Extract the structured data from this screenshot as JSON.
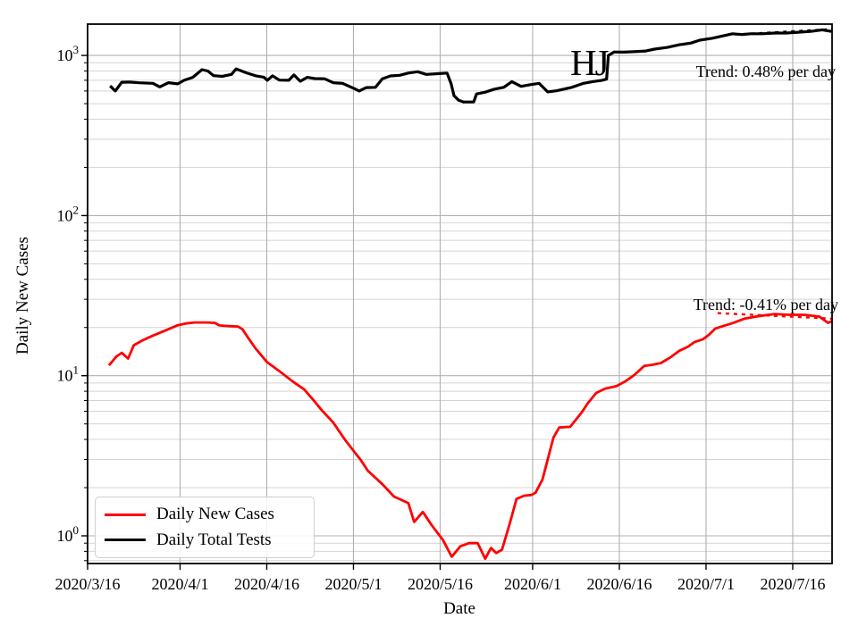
{
  "figure": {
    "ylabel": "Daily New Cases",
    "xlabel": "Date",
    "annotation_hj": "HJ",
    "trend_tests_label": "Trend: 0.48% per day",
    "trend_cases_label": "Trend: -0.41% per day",
    "background_color": "#ffffff",
    "spine_color": "#000000",
    "major_grid_color": "#b0b0b0",
    "minor_grid_color": "#d4d4d4"
  },
  "legend": {
    "items": [
      {
        "label": "Daily New Cases",
        "color": "#ff0000"
      },
      {
        "label": "Daily Total Tests",
        "color": "#000000"
      }
    ]
  },
  "chart_data": {
    "type": "line",
    "title": "",
    "xlabel": "Date",
    "ylabel": "Daily New Cases",
    "y_scale": "log",
    "ylim": [
      0.67,
      1570
    ],
    "x_unit": "days since 2020/3/16",
    "x_tick_days": [
      0,
      16,
      31,
      46,
      61,
      77,
      92,
      107,
      122
    ],
    "x_tick_labels": [
      "2020/3/16",
      "2020/4/1",
      "2020/4/16",
      "2020/5/1",
      "2020/5/16",
      "2020/6/1",
      "2020/6/16",
      "2020/7/1",
      "2020/7/16"
    ],
    "y_ticks": [
      {
        "value": 1,
        "base": "10",
        "exp": "0"
      },
      {
        "value": 10,
        "base": "10",
        "exp": "1"
      },
      {
        "value": 100,
        "base": "10",
        "exp": "2"
      },
      {
        "value": 1000,
        "base": "10",
        "exp": "3"
      }
    ],
    "grid": true,
    "legend_position": "lower left",
    "annotations": [
      {
        "text": "HJ",
        "day": 85,
        "value": 900
      },
      {
        "text": "Trend: 0.48% per day",
        "day": 129,
        "value": 740
      },
      {
        "text": "Trend: -0.41% per day",
        "day": 129,
        "value": 28
      }
    ],
    "series": [
      {
        "name": "Daily New Cases",
        "color": "#ff0000",
        "style": "solid",
        "width": 2.8,
        "points": [
          [
            3.7,
            11.6
          ],
          [
            5,
            13.2
          ],
          [
            5.9,
            13.9
          ],
          [
            7,
            12.8
          ],
          [
            8,
            15.5
          ],
          [
            9.5,
            16.6
          ],
          [
            11,
            17.6
          ],
          [
            13.5,
            19.2
          ],
          [
            15.5,
            20.6
          ],
          [
            17,
            21.2
          ],
          [
            18.5,
            21.5
          ],
          [
            20.5,
            21.5
          ],
          [
            22,
            21.4
          ],
          [
            22.8,
            20.6
          ],
          [
            24.5,
            20.4
          ],
          [
            26,
            20.3
          ],
          [
            26.8,
            19.5
          ],
          [
            27.8,
            17.2
          ],
          [
            29,
            14.9
          ],
          [
            31,
            12.2
          ],
          [
            33,
            10.8
          ],
          [
            35.5,
            9.2
          ],
          [
            37.5,
            8.2
          ],
          [
            39,
            7.1
          ],
          [
            40.5,
            6.1
          ],
          [
            42.5,
            5.1
          ],
          [
            44.5,
            4.0
          ],
          [
            46,
            3.4
          ],
          [
            47.2,
            3.0
          ],
          [
            48.5,
            2.55
          ],
          [
            51,
            2.1
          ],
          [
            53,
            1.76
          ],
          [
            55.5,
            1.6
          ],
          [
            56.5,
            1.22
          ],
          [
            58,
            1.41
          ],
          [
            59.5,
            1.17
          ],
          [
            61.5,
            0.94
          ],
          [
            63,
            0.74
          ],
          [
            64.5,
            0.86
          ],
          [
            66,
            0.9
          ],
          [
            67.5,
            0.9
          ],
          [
            68.8,
            0.72
          ],
          [
            69.8,
            0.84
          ],
          [
            70.7,
            0.78
          ],
          [
            71.7,
            0.82
          ],
          [
            73,
            1.18
          ],
          [
            74.2,
            1.7
          ],
          [
            75.5,
            1.78
          ],
          [
            76.8,
            1.8
          ],
          [
            77.5,
            1.86
          ],
          [
            78.7,
            2.25
          ],
          [
            79.6,
            3.0
          ],
          [
            80.6,
            4.1
          ],
          [
            81.6,
            4.75
          ],
          [
            83.5,
            4.8
          ],
          [
            85.5,
            5.9
          ],
          [
            86.5,
            6.7
          ],
          [
            88,
            7.8
          ],
          [
            89.5,
            8.3
          ],
          [
            91.5,
            8.6
          ],
          [
            93,
            9.2
          ],
          [
            94.6,
            10.1
          ],
          [
            95.7,
            11.0
          ],
          [
            96.3,
            11.5
          ],
          [
            97.7,
            11.7
          ],
          [
            99.2,
            12.0
          ],
          [
            100.8,
            13.0
          ],
          [
            102.4,
            14.3
          ],
          [
            103.9,
            15.2
          ],
          [
            105,
            16.2
          ],
          [
            106.5,
            16.9
          ],
          [
            107.5,
            18.0
          ],
          [
            108.6,
            19.7
          ],
          [
            110.1,
            20.5
          ],
          [
            111.6,
            21.3
          ],
          [
            113.6,
            22.7
          ],
          [
            116.3,
            23.6
          ],
          [
            118.9,
            24.3
          ],
          [
            121.4,
            24.0
          ],
          [
            124,
            24.0
          ],
          [
            126.6,
            23.4
          ],
          [
            128.1,
            21.4
          ],
          [
            128.8,
            21.9
          ]
        ]
      },
      {
        "name": "Daily Total Tests",
        "color": "#000000",
        "style": "solid",
        "width": 3.2,
        "points": [
          [
            3.9,
            645
          ],
          [
            4.8,
            600
          ],
          [
            5.9,
            680
          ],
          [
            7.2,
            682
          ],
          [
            9,
            675
          ],
          [
            11.3,
            670
          ],
          [
            12.5,
            636
          ],
          [
            14,
            676
          ],
          [
            15.6,
            665
          ],
          [
            16.7,
            700
          ],
          [
            18.2,
            730
          ],
          [
            19.8,
            815
          ],
          [
            20.8,
            800
          ],
          [
            21.8,
            748
          ],
          [
            23.3,
            740
          ],
          [
            24.9,
            762
          ],
          [
            25.7,
            825
          ],
          [
            27.5,
            778
          ],
          [
            29.1,
            746
          ],
          [
            30.5,
            732
          ],
          [
            31.1,
            700
          ],
          [
            32,
            746
          ],
          [
            33.2,
            702
          ],
          [
            34.8,
            700
          ],
          [
            35.7,
            756
          ],
          [
            36.8,
            690
          ],
          [
            38,
            730
          ],
          [
            39.3,
            717
          ],
          [
            41,
            715
          ],
          [
            42.5,
            676
          ],
          [
            44.1,
            670
          ],
          [
            46.1,
            622
          ],
          [
            47,
            600
          ],
          [
            48.2,
            630
          ],
          [
            49.8,
            632
          ],
          [
            51,
            715
          ],
          [
            52.4,
            745
          ],
          [
            54,
            752
          ],
          [
            55.5,
            776
          ],
          [
            57.1,
            792
          ],
          [
            58.6,
            762
          ],
          [
            60.6,
            770
          ],
          [
            62.2,
            776
          ],
          [
            62.9,
            665
          ],
          [
            63.4,
            560
          ],
          [
            64.2,
            525
          ],
          [
            65,
            513
          ],
          [
            66.8,
            512
          ],
          [
            67.3,
            575
          ],
          [
            68.8,
            590
          ],
          [
            70.4,
            616
          ],
          [
            72,
            632
          ],
          [
            73.4,
            686
          ],
          [
            75,
            641
          ],
          [
            76.5,
            656
          ],
          [
            78.1,
            670
          ],
          [
            79.6,
            592
          ],
          [
            81.2,
            602
          ],
          [
            83.8,
            632
          ],
          [
            85.8,
            670
          ],
          [
            87.4,
            686
          ],
          [
            89,
            700
          ],
          [
            89.8,
            712
          ],
          [
            90.1,
            1000
          ],
          [
            91.1,
            1052
          ],
          [
            92.7,
            1048
          ],
          [
            94.5,
            1056
          ],
          [
            96.6,
            1066
          ],
          [
            98.1,
            1096
          ],
          [
            100.3,
            1122
          ],
          [
            102.4,
            1166
          ],
          [
            104.4,
            1196
          ],
          [
            105.9,
            1246
          ],
          [
            108.1,
            1282
          ],
          [
            110.1,
            1330
          ],
          [
            111.6,
            1366
          ],
          [
            113.2,
            1350
          ],
          [
            114.7,
            1366
          ],
          [
            116.7,
            1366
          ],
          [
            118.9,
            1380
          ],
          [
            120.9,
            1380
          ],
          [
            122.9,
            1396
          ],
          [
            125.1,
            1412
          ],
          [
            127.1,
            1446
          ],
          [
            128.7,
            1412
          ]
        ]
      },
      {
        "name": "Cases trend fit (-0.41%/day)",
        "color": "#ff0000",
        "style": "dashed",
        "width": 2.4,
        "points": [
          [
            109,
            24.6
          ],
          [
            129,
            22.7
          ]
        ]
      },
      {
        "name": "Tests trend fit (0.48%/day)",
        "color": "#000000",
        "style": "dashed",
        "width": 2.2,
        "points": [
          [
            112,
            1352
          ],
          [
            129,
            1462
          ]
        ]
      }
    ]
  }
}
